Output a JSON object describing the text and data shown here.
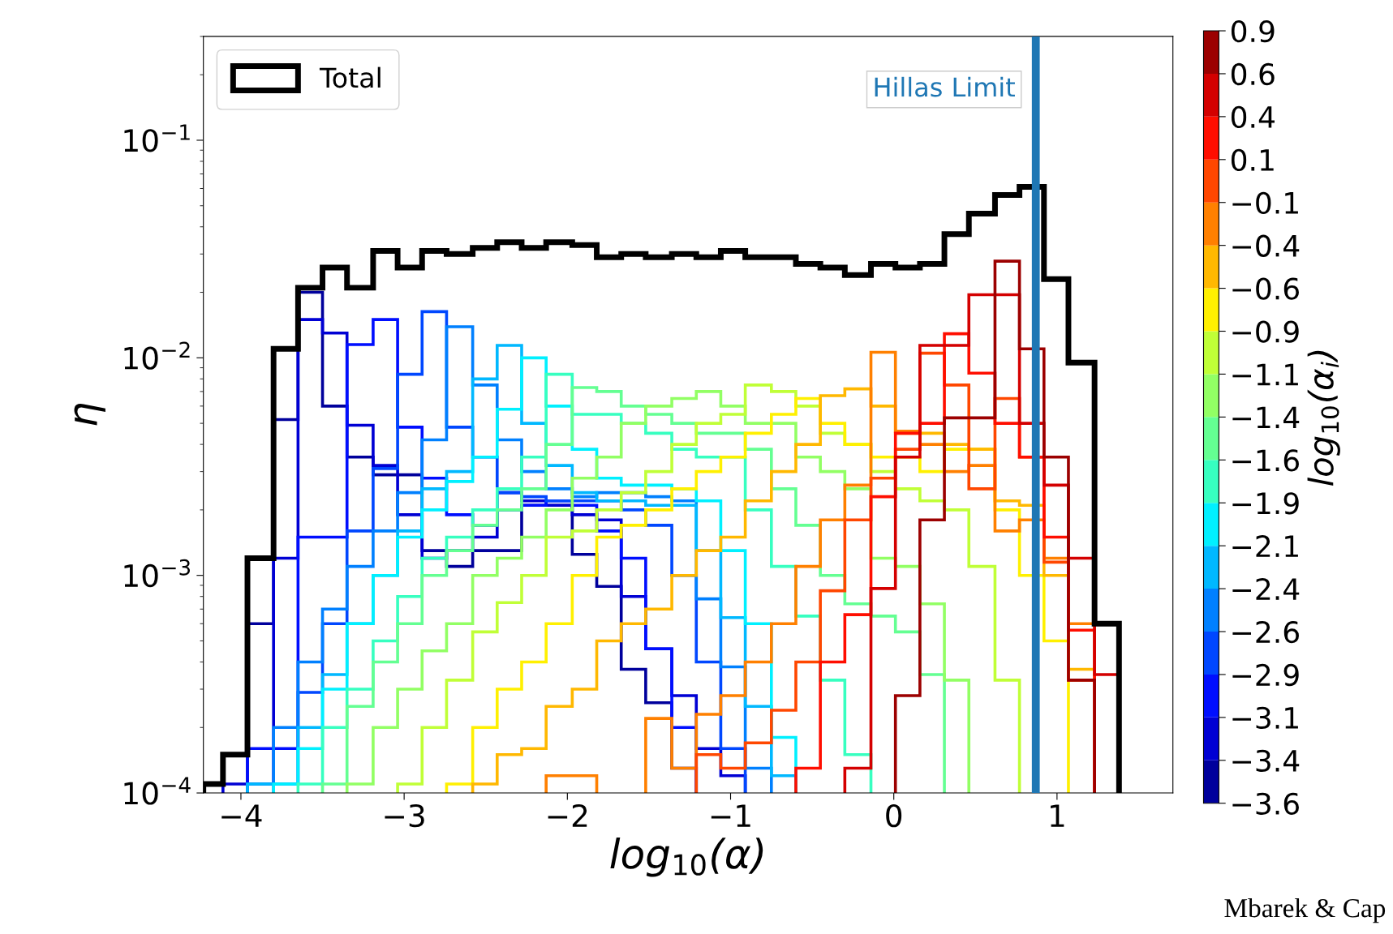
{
  "chart_data": {
    "type": "histogram",
    "xlabel": "log$_{10}$(α)",
    "ylabel": "η",
    "clabel": "log$_{10}$(α$_{i}$)",
    "bins": [
      -4.23,
      -4.11,
      -3.96,
      -3.8,
      -3.65,
      -3.5,
      -3.35,
      -3.19,
      -3.04,
      -2.89,
      -2.74,
      -2.58,
      -2.43,
      -2.28,
      -2.13,
      -1.97,
      -1.82,
      -1.67,
      -1.52,
      -1.36,
      -1.21,
      -1.06,
      -0.91,
      -0.75,
      -0.6,
      -0.45,
      -0.3,
      -0.14,
      0.01,
      0.16,
      0.31,
      0.46,
      0.62,
      0.77,
      0.92,
      1.07,
      1.23,
      1.38
    ],
    "series": [
      {
        "name": "Total",
        "color": "#000000",
        "values": [
          0.00011,
          0.00015,
          0.0012,
          0.011,
          0.021,
          0.026,
          0.021,
          0.031,
          0.026,
          0.031,
          0.03,
          0.032,
          0.034,
          0.032,
          0.034,
          0.033,
          0.029,
          0.03,
          0.029,
          0.03,
          0.029,
          0.031,
          0.029,
          0.029,
          0.027,
          0.026,
          0.024,
          0.027,
          0.026,
          0.027,
          0.037,
          0.046,
          0.056,
          0.061,
          0.023,
          0.0095,
          0.0006
        ]
      },
      {
        "color": "#00009c",
        "bins": [
          -3.96,
          -3.8,
          -3.65,
          -3.5,
          -3.35,
          -3.19,
          -3.04,
          -2.89,
          -2.74,
          -2.58,
          -2.43,
          -2.28,
          -2.13,
          -1.97,
          -1.82,
          -1.67,
          -1.52,
          -1.36,
          -1.21
        ],
        "values": [
          0.0006,
          0.0052,
          0.02,
          0.006,
          0.0035,
          0.0029,
          0.0029,
          0.0013,
          0.0011,
          0.0013,
          0.0013,
          0.0021,
          0.0021,
          0.00125,
          0.00089,
          0.00037,
          0.00026,
          0.00013
        ]
      },
      {
        "color": "#0000d4",
        "bins": [
          -4.11,
          -3.96,
          -3.8,
          -3.65,
          -3.5,
          -3.35,
          -3.19,
          -3.04,
          -2.89,
          -2.74,
          -2.58,
          -2.43,
          -2.28,
          -2.13,
          -1.97,
          -1.82,
          -1.67,
          -1.52,
          -1.36,
          -1.21,
          -1.06,
          -0.91
        ],
        "values": [
          0.00011,
          0.00011,
          0.0012,
          0.015,
          0.013,
          0.0049,
          0.0032,
          0.0019,
          0.0012,
          0.0013,
          0.0015,
          0.0024,
          0.0022,
          0.0021,
          0.0019,
          0.0018,
          0.0008,
          0.00046,
          0.00028,
          0.00016,
          0.00012
        ]
      },
      {
        "color": "#000eff",
        "bins": [
          -3.96,
          -3.8,
          -3.65,
          -3.5,
          -3.35,
          -3.19,
          -3.04,
          -2.89,
          -2.74,
          -2.58,
          -2.43,
          -2.28,
          -2.13,
          -1.97,
          -1.82,
          -1.67,
          -1.52,
          -1.36,
          -1.21
        ],
        "values": [
          0.00016,
          0.00016,
          0.0015,
          0.0015,
          0.0115,
          0.015,
          0.0048,
          0.0028,
          0.0019,
          0.0017,
          0.002,
          0.0021,
          0.0022,
          0.0021,
          0.0016,
          0.0012,
          0.00046,
          0.0002
        ]
      },
      {
        "color": "#0047ff",
        "bins": [
          -3.8,
          -3.65,
          -3.5,
          -3.35,
          -3.19,
          -3.04,
          -2.89,
          -2.74,
          -2.58,
          -2.43,
          -2.28,
          -2.13,
          -1.97,
          -1.82,
          -1.67,
          -1.52,
          -1.36,
          -1.21,
          -1.06,
          -0.91
        ],
        "values": [
          0.00011,
          0.00029,
          0.0006,
          0.0016,
          0.0031,
          0.0084,
          0.0163,
          0.0048,
          0.0035,
          0.0024,
          0.0023,
          0.0022,
          0.0022,
          0.0022,
          0.002,
          0.0017,
          0.001,
          0.0004,
          0.00016
        ]
      },
      {
        "color": "#0080ff",
        "bins": [
          -3.96,
          -3.8,
          -3.65,
          -3.5,
          -3.35,
          -3.19,
          -3.04,
          -2.89,
          -2.74,
          -2.58,
          -2.43,
          -2.28,
          -2.13,
          -1.97,
          -1.82,
          -1.67,
          -1.52,
          -1.36,
          -1.21,
          -1.06,
          -0.91,
          -0.75
        ],
        "values": [
          0.00011,
          0.0002,
          0.0004,
          0.0007,
          0.0011,
          0.0016,
          0.0024,
          0.0042,
          0.0139,
          0.0075,
          0.0042,
          0.003,
          0.0025,
          0.0023,
          0.0024,
          0.0024,
          0.0023,
          0.0022,
          0.00078,
          0.00038,
          0.00013
        ]
      },
      {
        "color": "#00b8ff",
        "bins": [
          -3.96,
          -3.8,
          -3.65,
          -3.5,
          -3.35,
          -3.19,
          -3.04,
          -2.89,
          -2.74,
          -2.58,
          -2.43,
          -2.28,
          -2.13,
          -1.97,
          -1.82,
          -1.67,
          -1.52,
          -1.36,
          -1.21,
          -1.06,
          -0.91,
          -0.75,
          -0.6
        ],
        "values": [
          0.00011,
          0.00011,
          0.0002,
          0.00035,
          0.0006,
          0.001,
          0.0016,
          0.0025,
          0.003,
          0.008,
          0.0114,
          0.005,
          0.0032,
          0.0024,
          0.0022,
          0.0022,
          0.0021,
          0.0021,
          0.0013,
          0.00064,
          0.00025,
          0.00012
        ]
      },
      {
        "color": "#00f0ff",
        "bins": [
          -3.8,
          -3.65,
          -3.5,
          -3.35,
          -3.19,
          -3.04,
          -2.89,
          -2.74,
          -2.58,
          -2.43,
          -2.28,
          -2.13,
          -1.97,
          -1.82,
          -1.67,
          -1.52,
          -1.36,
          -1.21,
          -1.06,
          -0.91,
          -0.75,
          -0.6
        ],
        "values": [
          0.00011,
          0.00016,
          0.0003,
          0.0006,
          0.001,
          0.0015,
          0.002,
          0.0027,
          0.0035,
          0.0058,
          0.01,
          0.006,
          0.0038,
          0.0028,
          0.0026,
          0.0026,
          0.0025,
          0.0022,
          0.0013,
          0.0006,
          0.00018
        ]
      },
      {
        "color": "#37ffc0",
        "bins": [
          -3.65,
          -3.5,
          -3.35,
          -3.19,
          -3.04,
          -2.89,
          -2.74,
          -2.58,
          -2.43,
          -2.28,
          -2.13,
          -1.97,
          -1.82,
          -1.67,
          -1.52,
          -1.36,
          -1.21,
          -1.06,
          -0.91,
          -0.75,
          -0.6,
          -0.45,
          -0.3,
          -0.14
        ],
        "values": [
          0.00011,
          0.0002,
          0.0003,
          0.0005,
          0.0008,
          0.0012,
          0.0015,
          0.002,
          0.0025,
          0.0035,
          0.0084,
          0.0055,
          0.0055,
          0.005,
          0.0045,
          0.0038,
          0.0035,
          0.0035,
          0.002,
          0.0011,
          0.00065,
          0.00033,
          0.00015
        ]
      },
      {
        "color": "#64ff92",
        "bins": [
          -3.5,
          -3.35,
          -3.19,
          -3.04,
          -2.89,
          -2.74,
          -2.58,
          -2.43,
          -2.28,
          -2.13,
          -1.97,
          -1.82,
          -1.67,
          -1.52,
          -1.36,
          -1.21,
          -1.06,
          -0.91,
          -0.75,
          -0.6,
          -0.45,
          -0.3,
          -0.14,
          0.01,
          0.16,
          0.31
        ],
        "values": [
          0.00011,
          0.00025,
          0.0004,
          0.0006,
          0.001,
          0.0013,
          0.0017,
          0.002,
          0.0025,
          0.004,
          0.0073,
          0.007,
          0.006,
          0.0055,
          0.005,
          0.0045,
          0.0045,
          0.0038,
          0.0025,
          0.0017,
          0.001,
          0.00074,
          0.00065,
          0.00055,
          0.00035
        ]
      },
      {
        "color": "#92ff64",
        "bins": [
          -3.35,
          -3.19,
          -3.04,
          -2.89,
          -2.74,
          -2.58,
          -2.43,
          -2.28,
          -2.13,
          -1.97,
          -1.82,
          -1.67,
          -1.52,
          -1.36,
          -1.21,
          -1.06,
          -0.91,
          -0.75,
          -0.6,
          -0.45,
          -0.3,
          -0.14,
          0.01,
          0.16,
          0.31,
          0.46
        ],
        "values": [
          0.00011,
          0.0002,
          0.0003,
          0.00045,
          0.0006,
          0.001,
          0.0012,
          0.0015,
          0.002,
          0.0028,
          0.0035,
          0.005,
          0.006,
          0.0065,
          0.007,
          0.006,
          0.005,
          0.005,
          0.0035,
          0.003,
          0.0025,
          0.0012,
          0.0011,
          0.00074,
          0.00033
        ]
      },
      {
        "color": "#c0ff37",
        "bins": [
          -3.04,
          -2.89,
          -2.74,
          -2.58,
          -2.43,
          -2.28,
          -2.13,
          -1.97,
          -1.82,
          -1.67,
          -1.52,
          -1.36,
          -1.21,
          -1.06,
          -0.91,
          -0.75,
          -0.6,
          -0.45,
          -0.3,
          -0.14,
          0.01,
          0.16,
          0.31,
          0.46,
          0.62,
          0.77
        ],
        "values": [
          0.00011,
          0.0002,
          0.00033,
          0.00055,
          0.00075,
          0.001,
          0.0015,
          0.0016,
          0.002,
          0.0024,
          0.003,
          0.004,
          0.005,
          0.0055,
          0.0075,
          0.007,
          0.006,
          0.0045,
          0.004,
          0.003,
          0.0025,
          0.0022,
          0.002,
          0.0011,
          0.00033
        ]
      },
      {
        "color": "#fff000",
        "bins": [
          -2.74,
          -2.58,
          -2.43,
          -2.28,
          -2.13,
          -1.97,
          -1.82,
          -1.67,
          -1.52,
          -1.36,
          -1.21,
          -1.06,
          -0.91,
          -0.75,
          -0.6,
          -0.45,
          -0.3,
          -0.14,
          0.01,
          0.16,
          0.31,
          0.46,
          0.62,
          0.77,
          0.92,
          1.07
        ],
        "values": [
          0.00011,
          0.0002,
          0.0003,
          0.0004,
          0.0006,
          0.001,
          0.0015,
          0.0017,
          0.002,
          0.0025,
          0.003,
          0.0035,
          0.0045,
          0.0055,
          0.0065,
          0.005,
          0.004,
          0.0035,
          0.0035,
          0.003,
          0.0038,
          0.0038,
          0.002,
          0.001,
          0.0005
        ]
      },
      {
        "color": "#ffb800",
        "bins": [
          -2.58,
          -2.43,
          -2.28,
          -2.13,
          -1.97,
          -1.82,
          -1.67,
          -1.52,
          -1.36,
          -1.21,
          -1.06,
          -0.91,
          -0.75,
          -0.6,
          -0.45,
          -0.3,
          -0.14,
          0.01,
          0.16,
          0.31,
          0.46,
          0.62,
          0.77,
          0.92,
          1.07,
          1.23
        ],
        "values": [
          0.00011,
          0.00015,
          0.00016,
          0.00025,
          0.0003,
          0.0005,
          0.0006,
          0.0007,
          0.001,
          0.0013,
          0.0015,
          0.0022,
          0.003,
          0.004,
          0.0067,
          0.0072,
          0.006,
          0.0045,
          0.0045,
          0.004,
          0.0038,
          0.0022,
          0.0021,
          0.001,
          0.00037
        ]
      },
      {
        "color": "#ff8000",
        "bins": [
          -2.13,
          -1.97,
          -1.82
        ],
        "values": [
          0.00012,
          0.00012
        ]
      },
      {
        "color": "#ff8000",
        "bins": [
          -1.52,
          -1.36,
          -1.21,
          -1.06,
          -0.91,
          -0.75,
          -0.6,
          -0.45,
          -0.3,
          -0.14,
          0.01,
          0.16,
          0.31,
          0.46,
          0.62,
          0.77,
          0.92,
          1.07,
          1.23
        ],
        "values": [
          0.00022,
          0.00013,
          0.00023,
          0.00028,
          0.0004,
          0.0006,
          0.0011,
          0.0018,
          0.0026,
          0.0106,
          0.0046,
          0.004,
          0.003,
          0.0032,
          0.0016,
          0.0018,
          0.0012,
          0.0006
        ]
      },
      {
        "color": "#ff4700",
        "bins": [
          -1.21,
          -1.06,
          -0.91,
          -0.75,
          -0.6,
          -0.45,
          -0.3,
          -0.14,
          0.01,
          0.16,
          0.31,
          0.46,
          0.62,
          0.77,
          0.92,
          1.07,
          1.23
        ],
        "values": [
          0.00015,
          0.00013,
          0.00017,
          0.00024,
          0.0004,
          0.00085,
          0.0018,
          0.0028,
          0.0038,
          0.0105,
          0.0075,
          0.0025,
          0.0065,
          0.0035,
          0.00115,
          0.00033
        ]
      },
      {
        "color": "#ff0e00",
        "bins": [
          -0.6,
          -0.45,
          -0.3,
          -0.14,
          0.01,
          0.16,
          0.31,
          0.46,
          0.62,
          0.77,
          0.92,
          1.07,
          1.23
        ],
        "values": [
          0.00013,
          0.0004,
          0.00066,
          0.0023,
          0.0045,
          0.005,
          0.0129,
          0.0085,
          0.005,
          0.0035,
          0.0015,
          0.00056
        ]
      },
      {
        "color": "#d40000",
        "bins": [
          -0.3,
          -0.14,
          0.01,
          0.16,
          0.31,
          0.46,
          0.62,
          0.77,
          0.92,
          1.07,
          1.23,
          1.38
        ],
        "values": [
          0.00013,
          0.00087,
          0.0035,
          0.0114,
          0.0114,
          0.0195,
          0.0195,
          0.005,
          0.0026,
          0.0012,
          0.00035
        ]
      },
      {
        "color": "#9c0000",
        "bins": [
          0.01,
          0.16,
          0.31,
          0.46,
          0.62,
          0.77,
          0.92,
          1.07,
          1.23
        ],
        "values": [
          0.00028,
          0.0018,
          0.0053,
          0.0053,
          0.0278,
          0.011,
          0.0035,
          0.00033
        ]
      }
    ],
    "xlim": [
      -4.23,
      1.71
    ],
    "xticks": [
      -4,
      -3,
      -2,
      -1,
      0,
      1
    ],
    "log": "y",
    "ylim": [
      0.0001,
      0.3
    ],
    "yticks": [
      {
        "value": 0.0001,
        "label": "10$^{−4}$"
      },
      {
        "value": 0.001,
        "label": "10$^{−3}$"
      },
      {
        "value": 0.01,
        "label": "10$^{−2}$"
      },
      {
        "value": 0.1,
        "label": "10$^{−1}$"
      }
    ],
    "clim": [
      -3.6,
      0.9
    ],
    "cticks": [
      {
        "value": -3.6,
        "label": "−3.6"
      },
      {
        "value": -3.35,
        "label": "−3.4"
      },
      {
        "value": -3.1,
        "label": "−3.1"
      },
      {
        "value": -2.85,
        "label": "−2.9"
      },
      {
        "value": -2.6,
        "label": "−2.6"
      },
      {
        "value": -2.35,
        "label": "−2.4"
      },
      {
        "value": -2.1,
        "label": "−2.1"
      },
      {
        "value": -1.85,
        "label": "−1.9"
      },
      {
        "value": -1.6,
        "label": "−1.6"
      },
      {
        "value": -1.35,
        "label": "−1.4"
      },
      {
        "value": -1.1,
        "label": "−1.1"
      },
      {
        "value": -0.85,
        "label": "−0.9"
      },
      {
        "value": -0.6,
        "label": "−0.6"
      },
      {
        "value": -0.35,
        "label": "−0.4"
      },
      {
        "value": -0.1,
        "label": "−0.1"
      },
      {
        "value": 0.15,
        "label": "0.1"
      },
      {
        "value": 0.4,
        "label": "0.4"
      },
      {
        "value": 0.65,
        "label": "0.6"
      },
      {
        "value": 0.9,
        "label": "0.9"
      }
    ],
    "ref_lines": [
      {
        "axis": "x",
        "value": 0.87,
        "label": "Hillas Limit",
        "color": "#1f77b4"
      }
    ],
    "legend": "top left",
    "grid": false,
    "annotations": [
      "Mbarek & Cap"
    ]
  }
}
